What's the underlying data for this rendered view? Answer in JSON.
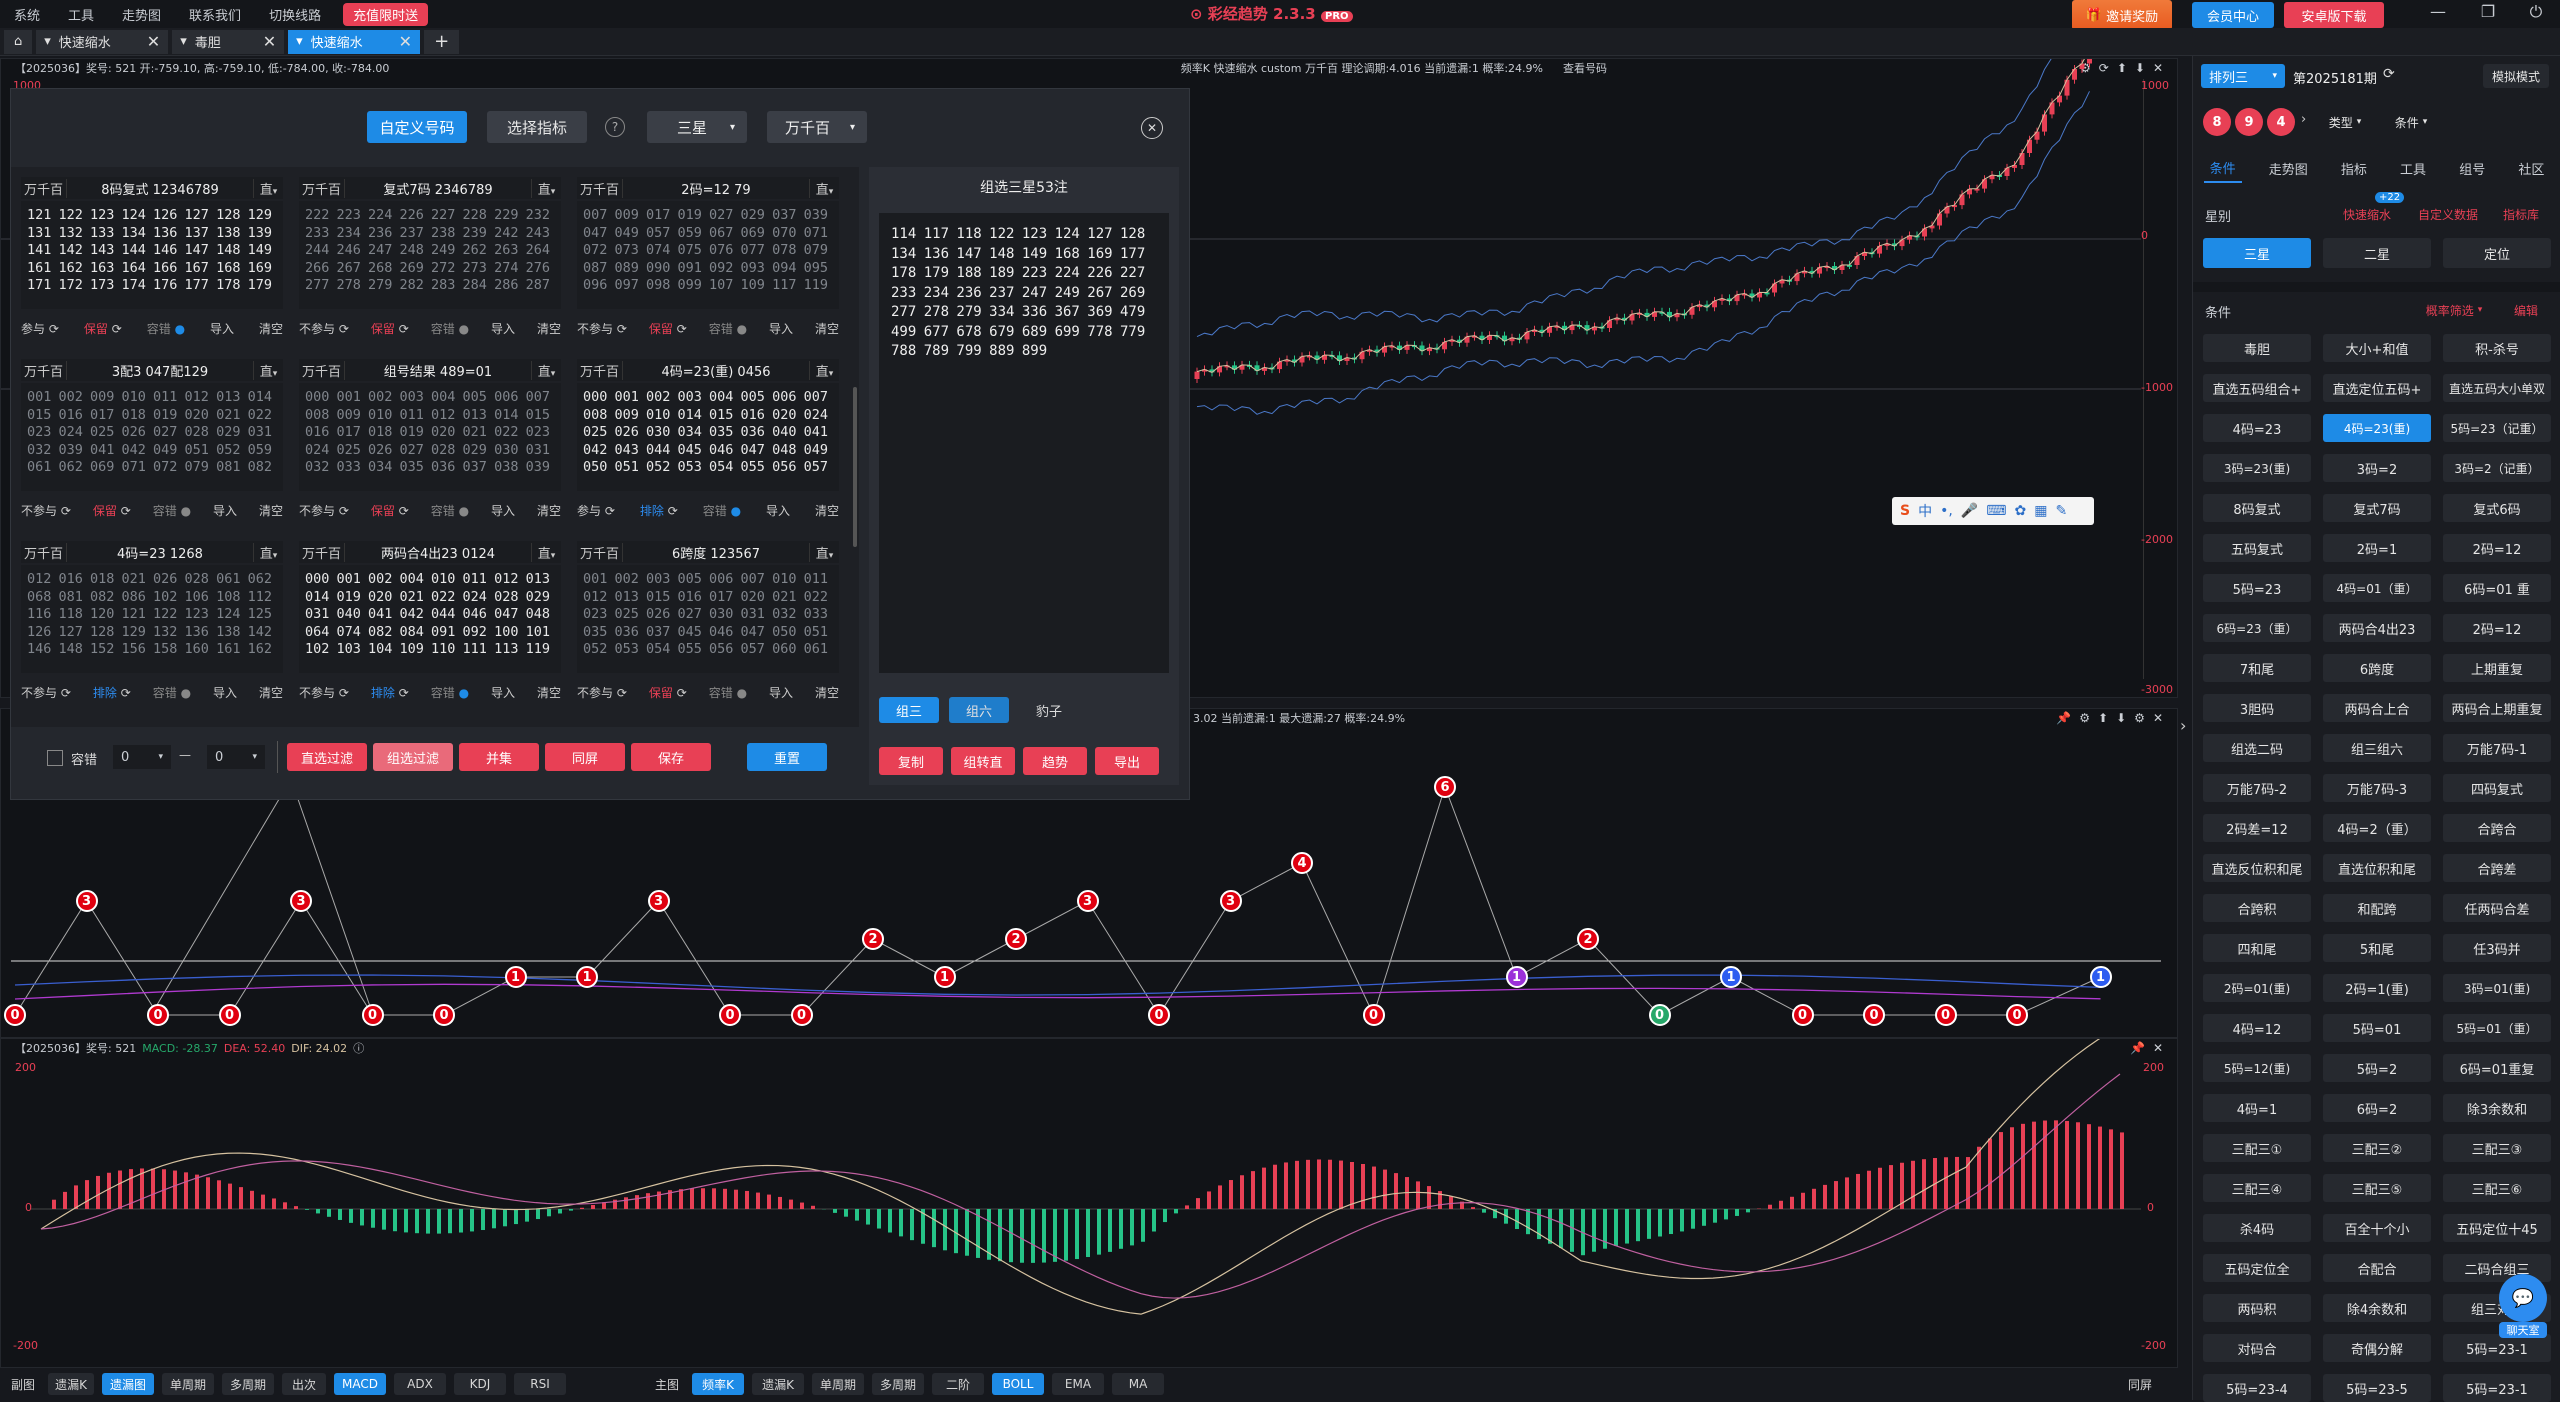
{
  "menu": {
    "items": [
      "系统",
      "工具",
      "走势图",
      "联系我们",
      "切换线路"
    ],
    "recharge": "充值限时送"
  },
  "app_title": "彩经趋势 2.3.3",
  "app_badge": "PRO",
  "top_buttons": {
    "invite": "邀请奖励",
    "member": "会员中心",
    "android": "安卓版下载"
  },
  "tabs": [
    {
      "label": "快速缩水"
    },
    {
      "label": "毒胆"
    },
    {
      "label": "快速缩水"
    }
  ],
  "kline_pane": {
    "info": "【2025036】奖号: 521  开:-759.10, 高:-759.10, 低:-784.00, 收:-784.00",
    "indicator": "频率K  快速缩水  custom  万千百  理论调期:4.016  当前遗漏:1  概率:24.9%",
    "query": "查看号码",
    "axis": [
      "1000",
      "0",
      "-1000",
      "-2000",
      "-3000"
    ]
  },
  "freq_pane": {
    "info": "3.02  当前遗漏:1  最大遗漏:27  概率:24.9%"
  },
  "macd_pane": {
    "info": "【2025036】奖号: 521",
    "macd": "MACD: -28.37",
    "dea": "DEA: 52.40",
    "dif": "DIF: 24.02",
    "axis": [
      "200",
      "0",
      "-200"
    ]
  },
  "dialog": {
    "btn_custom": "自定义号码",
    "btn_select": "选择指标",
    "help": "?",
    "sel_star": "三星",
    "sel_pos": "万千百",
    "cards": [
      {
        "pos": "万千百",
        "title": "8码复式 12346789",
        "mode": "直",
        "body": "121 122 123 124 126 127 128 129 131 132 133 134 136 137 138 139 141 142 143 144 146 147 148 149 161 162 163 164 166 167 168 169 171 172 173 174 176 177 178 179",
        "dim": false,
        "f1": "参与",
        "f2": "保留",
        "f3": "容错",
        "f4": "导入",
        "f5": "清空"
      },
      {
        "pos": "万千百",
        "title": "复式7码 2346789",
        "mode": "直",
        "body": "222 223 224 226 227 228 229 232 233 234 236 237 238 239 242 243 244 246 247 248 249 262 263 264 266 267 268 269 272 273 274 276 277 278 279 282 283 284 286 287",
        "dim": true,
        "f1": "不参与",
        "f2": "保留",
        "f3": "容错",
        "f4": "导入",
        "f5": "清空"
      },
      {
        "pos": "万千百",
        "title": "2码=12 79",
        "mode": "直",
        "body": "007 009 017 019 027 029 037 039 047 049 057 059 067 069 070 071 072 073 074 075 076 077 078 079 087 089 090 091 092 093 094 095 096 097 098 099 107 109 117 119",
        "dim": true,
        "f1": "不参与",
        "f2": "保留",
        "f3": "容错",
        "f4": "导入",
        "f5": "清空"
      },
      {
        "pos": "万千百",
        "title": "3配3 047配129",
        "mode": "直",
        "body": "001 002 009 010 011 012 013 014 015 016 017 018 019 020 021 022 023 024 025 026 027 028 029 031 032 039 041 042 049 051 052 059 061 062 069 071 072 079 081 082",
        "dim": true,
        "f1": "不参与",
        "f2": "保留",
        "f3": "容错",
        "f4": "导入",
        "f5": "清空"
      },
      {
        "pos": "万千百",
        "title": "组号结果 489=01",
        "mode": "直",
        "body": "000 001 002 003 004 005 006 007 008 009 010 011 012 013 014 015 016 017 018 019 020 021 022 023 024 025 026 027 028 029 030 031 032 033 034 035 036 037 038 039",
        "dim": true,
        "f1": "不参与",
        "f2": "保留",
        "f3": "容错",
        "f4": "导入",
        "f5": "清空"
      },
      {
        "pos": "万千百",
        "title": "4码=23(重) 0456",
        "mode": "直",
        "body": "000 001 002 003 004 005 006 007 008 009 010 014 015 016 020 024 025 026 030 034 035 036 040 041 042 043 044 045 046 047 048 049 050 051 052 053 054 055 056 057",
        "dim": false,
        "f1": "参与",
        "f2": "排除",
        "f3": "容错",
        "f4": "导入",
        "f5": "清空"
      },
      {
        "pos": "万千百",
        "title": "4码=23 1268",
        "mode": "直",
        "body": "012 016 018 021 026 028 061 062 068 081 082 086 102 106 108 112 116 118 120 121 122 123 124 125 126 127 128 129 132 136 138 142 146 148 152 156 158 160 161 162",
        "dim": true,
        "f1": "不参与",
        "f2": "排除",
        "f3": "容错",
        "f4": "导入",
        "f5": "清空"
      },
      {
        "pos": "万千百",
        "title": "两码合4出23 0124",
        "mode": "直",
        "body": "000 001 002 004 010 011 012 013 014 019 020 021 022 024 028 029 031 040 041 042 044 046 047 048 064 074 082 084 091 092 100 101 102 103 104 109 110 111 113 119",
        "dim": false,
        "f1": "不参与",
        "f2": "排除",
        "f3": "容错",
        "f4": "导入",
        "f5": "清空"
      },
      {
        "pos": "万千百",
        "title": "6跨度 123567",
        "mode": "直",
        "body": "001 002 003 005 006 007 010 011 012 013 015 016 017 020 021 022 023 025 026 027 030 031 032 033 035 036 037 045 046 047 050 051 052 053 054 055 056 057 060 061",
        "dim": true,
        "f1": "不参与",
        "f2": "保留",
        "f3": "容错",
        "f4": "导入",
        "f5": "清空"
      }
    ],
    "bottom": {
      "tolerance": "容错",
      "v1": "0",
      "dash": "—",
      "v2": "0",
      "b1": "直选过滤",
      "b2": "组选过滤",
      "b3": "并集",
      "b4": "同屏",
      "b5": "保存",
      "b6": "重置"
    },
    "result": {
      "title": "组选三星53注",
      "body": "114 117 118 122 123 124 127 128 134 136 147 148 149 168 169 177 178 179 188 189 223 224 226 227 233 234 236 237 247 249 267 269 277 278 279 334 336 367 369 479 499 677 678 679 689 699 778 779 788 789 799 889 899",
      "t1": "组三",
      "t2": "组六",
      "t3": "豹子",
      "a1": "复制",
      "a2": "组转直",
      "a3": "趋势",
      "a4": "导出"
    }
  },
  "ime": {
    "label": "中"
  },
  "right": {
    "lottery": "排列三",
    "period": "第2025181期",
    "sim": "模拟模式",
    "balls": [
      "8",
      "9",
      "4"
    ],
    "type": "类型",
    "cond": "条件",
    "nav": [
      "条件",
      "走势图",
      "指标",
      "工具",
      "组号",
      "社区"
    ],
    "star_label": "星别",
    "quick": "快速缩水",
    "badge": "+22",
    "custom_data": "自定义数据",
    "indicator_lib": "指标库",
    "stars": [
      "三星",
      "二星",
      "定位"
    ],
    "cond_label": "条件",
    "prob_filter": "概率筛选",
    "edit": "编辑",
    "grid": [
      "毒胆",
      "大小+和值",
      "积-杀号",
      "直选五码组合+",
      "直选定位五码+",
      "直选五码大小单双",
      "4码=23",
      "4码=23(重)",
      "5码=23（记重）",
      "3码=23(重)",
      "3码=2",
      "3码=2（记重）",
      "8码复式",
      "复式7码",
      "复式6码",
      "五码复式",
      "2码=1",
      "2码=12",
      "5码=23",
      "4码=01（重）",
      "6码=01 重",
      "6码=23（重）",
      "两码合4出23",
      "2码=12",
      "7和尾",
      "6跨度",
      "上期重复",
      "3胆码",
      "两码合上合",
      "两码合上期重复",
      "组选二码",
      "组三组六",
      "万能7码-1",
      "万能7码-2",
      "万能7码-3",
      "四码复式",
      "2码差=12",
      "4码=2（重）",
      "合跨合",
      "直选反位积和尾",
      "直选位积和尾",
      "合跨差",
      "合跨积",
      "和配跨",
      "任两码合差",
      "四和尾",
      "5和尾",
      "任3码并",
      "2码=01(重)",
      "2码=1(重)",
      "3码=01(重)",
      "4码=12",
      "5码=01",
      "5码=01（重）",
      "5码=12(重)",
      "5码=2",
      "6码=01重复",
      "4码=1",
      "6码=2",
      "除3余数和",
      "三配三①",
      "三配三②",
      "三配三③",
      "三配三④",
      "三配三⑤",
      "三配三⑥",
      "杀4码",
      "百全十个小",
      "五码定位十45",
      "五码定位全",
      "合配合",
      "二码合组三",
      "两码积",
      "除4余数和",
      "组三对子",
      "对码合",
      "奇偶分解",
      "5码=23-1",
      "5码=23-4",
      "5码=23-5",
      "5码=23-1"
    ],
    "chat": "聊天室"
  },
  "bottom_left_tabs": [
    "副图",
    "遗漏K",
    "遗漏图",
    "单周期",
    "多周期",
    "出次",
    "MACD",
    "ADX",
    "KDJ",
    "RSI"
  ],
  "bottom_mid_tabs": [
    "主图",
    "频率K",
    "遗漏K",
    "单周期",
    "多周期",
    "二阶",
    "BOLL",
    "EMA",
    "MA"
  ],
  "bottom_right": "同屏",
  "freq_values": [
    0,
    3,
    0,
    0,
    3,
    0,
    0,
    1,
    1,
    3,
    0,
    0,
    2,
    1,
    2,
    3,
    0,
    3,
    4,
    0,
    6,
    1,
    2,
    0,
    1,
    0,
    0,
    0,
    0,
    1
  ],
  "colors": {
    "accent": "#1e8be6",
    "red": "#e84055",
    "green": "#26a86a",
    "purple": "#9b30d9"
  }
}
